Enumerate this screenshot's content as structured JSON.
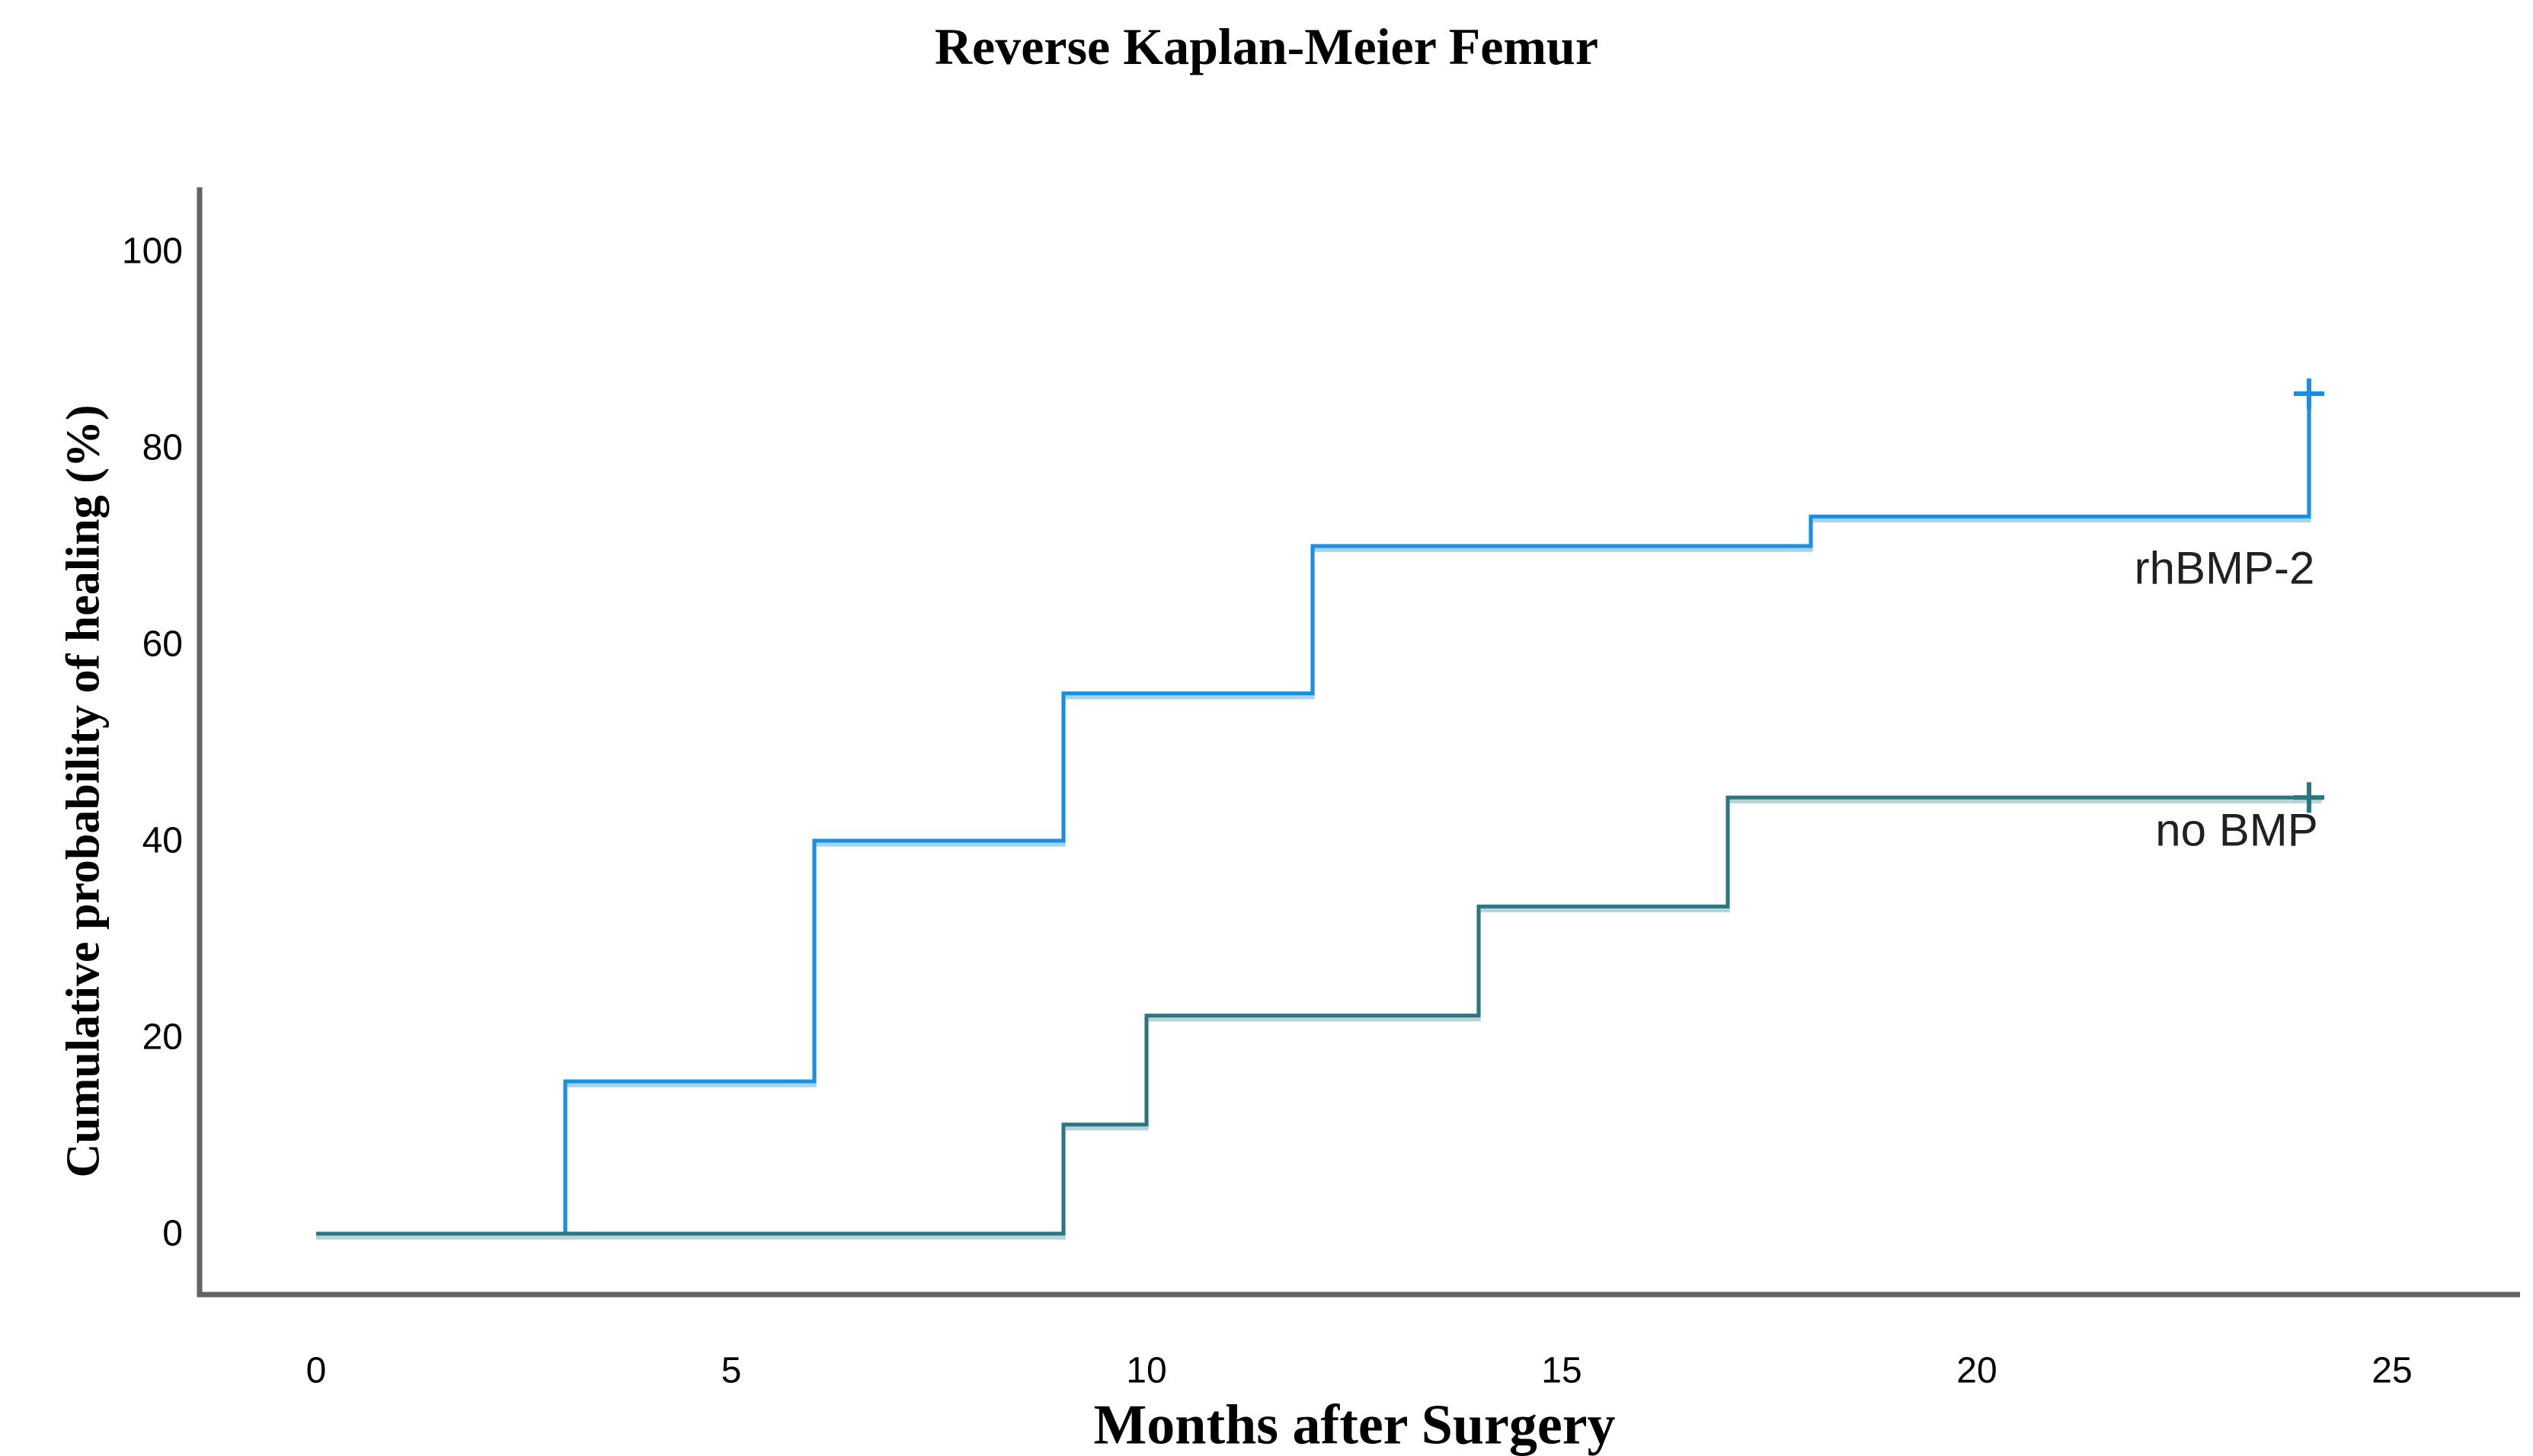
{
  "chart_data": {
    "type": "line",
    "subtype": "kaplan_meier_step",
    "title": "Reverse Kaplan-Meier Femur",
    "xlabel": "Months after Surgery",
    "ylabel": "Cumulative probability of healing (%)",
    "x_ticks": [
      0,
      5,
      10,
      15,
      20,
      25
    ],
    "y_ticks": [
      0,
      20,
      40,
      60,
      80,
      100
    ],
    "xlim": [
      -1.4,
      26.5
    ],
    "ylim": [
      -6.5,
      105.5
    ],
    "grid": false,
    "legend_position": "inline-labels-right",
    "axis_color": "#636363",
    "censor_marker": "+",
    "series": [
      {
        "name": "rhBMP-2",
        "label": "rhBMP-2",
        "color": "#1b8ee0",
        "halo_color": "#a5d3f0",
        "points": [
          [
            0,
            0
          ],
          [
            3,
            0
          ],
          [
            3,
            15.5
          ],
          [
            6,
            15.5
          ],
          [
            6,
            40
          ],
          [
            9,
            40
          ],
          [
            9,
            55
          ],
          [
            12,
            55
          ],
          [
            12,
            70
          ],
          [
            18,
            70
          ],
          [
            18,
            73
          ],
          [
            24,
            73
          ],
          [
            24,
            85.5
          ]
        ],
        "censor_points": [
          [
            24,
            85.5
          ]
        ]
      },
      {
        "name": "no BMP",
        "label": "no BMP",
        "color": "#2b7680",
        "halo_color": "#b7d5d9",
        "points": [
          [
            0,
            0
          ],
          [
            9,
            0
          ],
          [
            9,
            11.1
          ],
          [
            10,
            11.1
          ],
          [
            10,
            22.2
          ],
          [
            14,
            22.2
          ],
          [
            14,
            33.3
          ],
          [
            17,
            33.3
          ],
          [
            17,
            44.4
          ],
          [
            24.15,
            44.4
          ]
        ],
        "censor_points": [
          [
            24,
            44.4
          ]
        ]
      }
    ]
  }
}
